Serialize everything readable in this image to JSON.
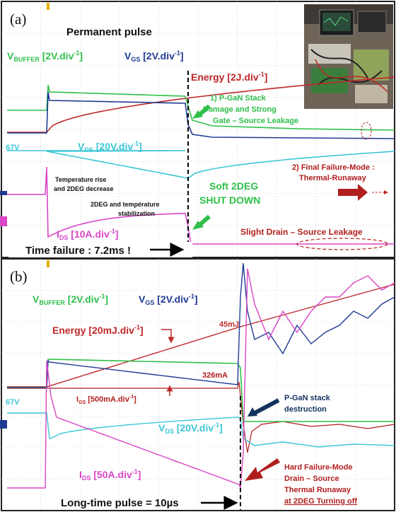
{
  "colors": {
    "green": "#2fbf4a",
    "blue": "#1f3a93",
    "red": "#c0282a",
    "cyan": "#3cc6d6",
    "magenta": "#d946c6",
    "darkred": "#b11e1e",
    "navy": "#14325e",
    "grid": "#b9b9b9",
    "yellow": "#e5b200"
  },
  "panel_a": {
    "tag": "(a)",
    "mode": "Permanent pulse",
    "vbuffer": {
      "main": "V",
      "sub": "BUFFER",
      "scale": " [2V.div",
      "exp": "-1",
      "close": "]"
    },
    "vgs": {
      "main": "V",
      "sub": "GS",
      "scale": " [2V.div",
      "exp": "-1",
      "close": "]"
    },
    "energy": {
      "main": "Energy",
      "scale": " [2J.div",
      "exp": "-1",
      "close": "]"
    },
    "vds": {
      "main": "V",
      "sub": "DS",
      "scale": " [20V.div",
      "exp": "-1",
      "close": "]"
    },
    "ids": {
      "main": "I",
      "sub": "DS",
      "scale": " [10A.div",
      "exp": "-1",
      "close": "]"
    },
    "v67": "67V",
    "ann1": [
      "1) P-GaN Stack",
      "Damage and Strong",
      "Gate – Source Leakage"
    ],
    "ann2": [
      "2) Final Failure-Mode :",
      "Thermal-Runaway"
    ],
    "temp_rise": [
      "Temperature rise",
      "and 2DEG decrease"
    ],
    "stabil": [
      "2DEG and température",
      "stabilization"
    ],
    "soft": [
      "Soft 2DEG",
      "SHUT DOWN"
    ],
    "slight": "Slight Drain – Source Leakage",
    "time_failure": "Time failure : 7.2ms !"
  },
  "panel_b": {
    "tag": "(b)",
    "vbuffer": {
      "main": "V",
      "sub": "BUFFER",
      "scale": " [2V.div",
      "exp": "-1",
      "close": "]"
    },
    "vgs": {
      "main": "V",
      "sub": "GS",
      "scale": " [2V.div",
      "exp": "-1",
      "close": "]"
    },
    "energy": {
      "main": "Energy",
      "scale": " [20mJ.div",
      "exp": "-1",
      "close": "]"
    },
    "igs": {
      "main": "I",
      "sub": "GS",
      "scale": " [500mA.div",
      "exp": "-1",
      "close": "]"
    },
    "vds": {
      "main": "V",
      "sub": "DS",
      "scale": " [20V.div",
      "exp": "-1",
      "close": "]"
    },
    "ids": {
      "main": "I",
      "sub": "DS",
      "scale": " [50A.div",
      "exp": "-1",
      "close": "]"
    },
    "v67": "67V",
    "e45": "45mJ",
    "i326": "326mA",
    "pgan": [
      "P-GaN stack",
      "destruction"
    ],
    "hard": [
      "Hard Failure-Mode",
      "Drain – Source",
      "Thermal Runaway",
      "at 2DEG Turning off"
    ],
    "longtime": "Long-time pulse = 10µs"
  },
  "chart_data": [
    {
      "type": "line",
      "title": "Permanent pulse",
      "note": "Time failure : 7.2ms !",
      "series": [
        {
          "name": "VBUFFER [2V.div-1]"
        },
        {
          "name": "VGS [2V.div-1]"
        },
        {
          "name": "Energy [2J.div-1]"
        },
        {
          "name": "VDS [20V.div-1]"
        },
        {
          "name": "IDS [10A.div-1]"
        }
      ],
      "grid": true
    },
    {
      "type": "line",
      "note": "Long-time pulse = 10µs",
      "series": [
        {
          "name": "VBUFFER [2V.div-1]"
        },
        {
          "name": "VGS [2V.div-1]"
        },
        {
          "name": "Energy [20mJ.div-1]"
        },
        {
          "name": "IGS [500mA.div-1]"
        },
        {
          "name": "VDS [20V.div-1]"
        },
        {
          "name": "IDS [50A.div-1]"
        }
      ],
      "annotations": [
        "45mJ",
        "326mA",
        "67V"
      ],
      "grid": true
    }
  ]
}
